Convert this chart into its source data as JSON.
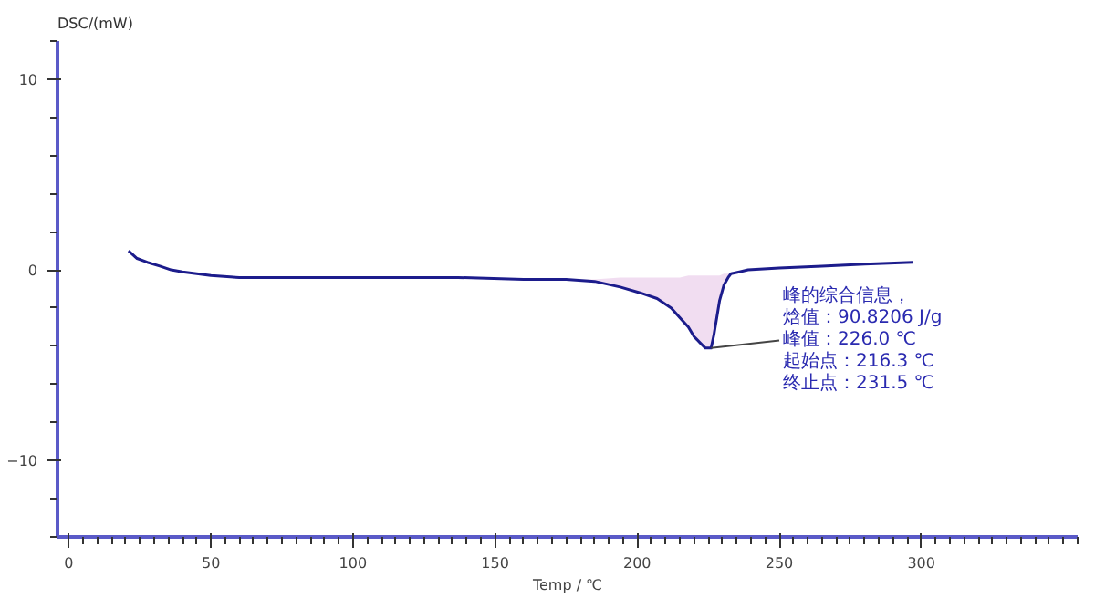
{
  "chart_data": {
    "type": "line",
    "xlabel": "Temp / ℃",
    "ylabel": "DSC/(mW)",
    "xlim": [
      -4,
      355
    ],
    "ylim": [
      -14,
      12
    ],
    "xticks": [
      0,
      50,
      100,
      150,
      200,
      250,
      300
    ],
    "yticks": [
      -10,
      0,
      10
    ],
    "grid": false,
    "marker": "none",
    "line_style": "solid",
    "x": [
      21,
      24,
      27.6,
      32,
      36,
      40,
      45,
      50,
      60,
      72.5,
      100,
      137,
      160,
      175,
      185,
      194,
      201,
      207,
      212,
      215,
      218,
      220,
      222,
      224,
      226,
      227,
      228,
      229,
      230.5,
      232,
      233,
      236,
      239,
      250,
      265,
      280,
      297
    ],
    "series": [
      {
        "color": "#1c1c8c",
        "values": [
          1.0,
          0.6,
          0.4,
          0.2,
          0.0,
          -0.1,
          -0.2,
          -0.3,
          -0.4,
          -0.4,
          -0.4,
          -0.4,
          -0.5,
          -0.5,
          -0.6,
          -0.9,
          -1.2,
          -1.5,
          -2.0,
          -2.5,
          -3.0,
          -3.5,
          -3.8,
          -4.1,
          -4.1,
          -3.4,
          -2.5,
          -1.6,
          -0.8,
          -0.4,
          -0.2,
          -0.1,
          0.0,
          0.1,
          0.2,
          0.3,
          0.4
        ],
        "lower": [
          null,
          null,
          null,
          null,
          null,
          null,
          null,
          null,
          null,
          null,
          null,
          null,
          null,
          -0.5,
          -0.6,
          -0.9,
          -1.2,
          -1.5,
          -2.0,
          -2.5,
          -3.0,
          -3.5,
          -3.8,
          -4.1,
          -4.1,
          -3.4,
          -2.5,
          -1.6,
          -0.8,
          -0.4,
          -0.2,
          null,
          null,
          null,
          null,
          null,
          null
        ],
        "upper": [
          null,
          null,
          null,
          null,
          null,
          null,
          null,
          null,
          null,
          null,
          null,
          null,
          null,
          -0.5,
          -0.5,
          -0.4,
          -0.4,
          -0.4,
          -0.4,
          -0.4,
          -0.3,
          -0.3,
          -0.3,
          -0.3,
          -0.3,
          -0.3,
          -0.3,
          -0.3,
          -0.2,
          -0.2,
          -0.2,
          null,
          null,
          null,
          null,
          null,
          null
        ]
      }
    ],
    "annotations": [
      {
        "text": "峰值：226.0 ℃",
        "x": 226,
        "y": -4.1
      },
      "峰的综合信息，",
      "焓值：90.8206 J/g",
      "起始点：216.3 ℃",
      "终止点：231.5 ℃"
    ]
  }
}
